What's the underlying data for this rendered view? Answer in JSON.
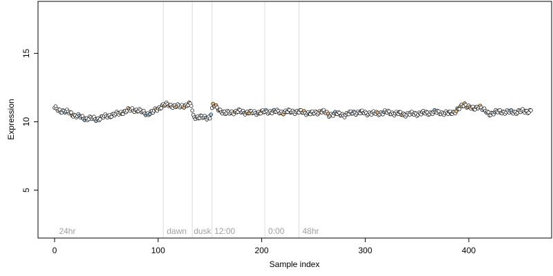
{
  "chart_data": {
    "type": "scatter",
    "title": "",
    "xlabel": "Sample index",
    "ylabel": "Expression",
    "xlim": [
      -16,
      480
    ],
    "ylim": [
      1.5,
      18.8
    ],
    "x_ticks": [
      0,
      100,
      200,
      300,
      400
    ],
    "y_ticks": [
      5,
      10,
      15
    ],
    "grid": false,
    "legend": "none",
    "colors": {
      "point_fill_default": "#ffffff",
      "point_fill_blue": "#9cc3e6",
      "point_fill_orange": "#f2b870",
      "point_stroke": "#000000",
      "vline": "#dcdcdc",
      "annotation_text": "#a0a0a0"
    },
    "vlines": [
      105,
      133,
      152,
      203,
      236
    ],
    "annotations": [
      {
        "x": 3,
        "label": "24hr"
      },
      {
        "x": 107,
        "label": "dawn"
      },
      {
        "x": 133,
        "label": "dusk"
      },
      {
        "x": 153,
        "label": "12:00"
      },
      {
        "x": 205,
        "label": "0:00"
      },
      {
        "x": 238,
        "label": "48hr"
      }
    ],
    "series": [
      {
        "anchors": [
          [
            1,
            10.95
          ],
          [
            5,
            10.85
          ],
          [
            10,
            10.75
          ],
          [
            15,
            10.65
          ],
          [
            20,
            10.45
          ],
          [
            25,
            10.35
          ],
          [
            30,
            10.25
          ],
          [
            35,
            10.25
          ],
          [
            40,
            10.2
          ],
          [
            45,
            10.3
          ],
          [
            50,
            10.4
          ],
          [
            55,
            10.5
          ],
          [
            60,
            10.55
          ],
          [
            65,
            10.7
          ],
          [
            70,
            10.8
          ],
          [
            75,
            10.9
          ],
          [
            80,
            10.85
          ],
          [
            85,
            10.7
          ],
          [
            90,
            10.6
          ],
          [
            95,
            10.7
          ],
          [
            100,
            11.0
          ],
          [
            105,
            11.2
          ],
          [
            110,
            11.25
          ],
          [
            115,
            11.15
          ],
          [
            120,
            11.1
          ],
          [
            125,
            11.2
          ],
          [
            130,
            11.25
          ],
          [
            132,
            11.2
          ],
          [
            134,
            10.4
          ],
          [
            138,
            10.35
          ],
          [
            145,
            10.3
          ],
          [
            150,
            10.35
          ],
          [
            153,
            11.2
          ],
          [
            158,
            10.95
          ],
          [
            165,
            10.6
          ],
          [
            170,
            10.7
          ],
          [
            178,
            10.75
          ],
          [
            185,
            10.7
          ],
          [
            190,
            10.65
          ],
          [
            200,
            10.7
          ],
          [
            210,
            10.75
          ],
          [
            220,
            10.7
          ],
          [
            230,
            10.75
          ],
          [
            240,
            10.7
          ],
          [
            250,
            10.6
          ],
          [
            258,
            10.8
          ],
          [
            265,
            10.5
          ],
          [
            270,
            10.6
          ],
          [
            280,
            10.5
          ],
          [
            290,
            10.7
          ],
          [
            300,
            10.65
          ],
          [
            310,
            10.6
          ],
          [
            320,
            10.7
          ],
          [
            330,
            10.6
          ],
          [
            340,
            10.55
          ],
          [
            350,
            10.6
          ],
          [
            360,
            10.65
          ],
          [
            370,
            10.7
          ],
          [
            380,
            10.6
          ],
          [
            385,
            10.7
          ],
          [
            390,
            10.9
          ],
          [
            396,
            11.3
          ],
          [
            400,
            11.1
          ],
          [
            405,
            10.9
          ],
          [
            410,
            11.2
          ],
          [
            415,
            10.8
          ],
          [
            420,
            10.6
          ],
          [
            430,
            10.75
          ],
          [
            440,
            10.7
          ],
          [
            450,
            10.75
          ],
          [
            460,
            10.8
          ]
        ],
        "x_range": [
          0,
          460
        ],
        "x_step": 1,
        "jitter": 0.18,
        "blue_x": [
          10,
          24,
          29,
          40,
          88,
          92,
          137,
          146,
          151,
          183,
          196,
          204,
          212,
          228,
          246,
          271,
          289,
          296,
          318,
          333,
          367,
          381,
          389,
          417,
          425,
          441
        ],
        "orange_x": [
          17,
          65,
          72,
          80,
          98,
          106,
          111,
          118,
          125,
          130,
          153,
          156,
          159,
          174,
          185,
          188,
          200,
          221,
          241,
          257,
          264,
          312,
          336,
          383,
          388,
          392,
          396,
          399,
          401,
          405,
          411
        ]
      }
    ]
  }
}
